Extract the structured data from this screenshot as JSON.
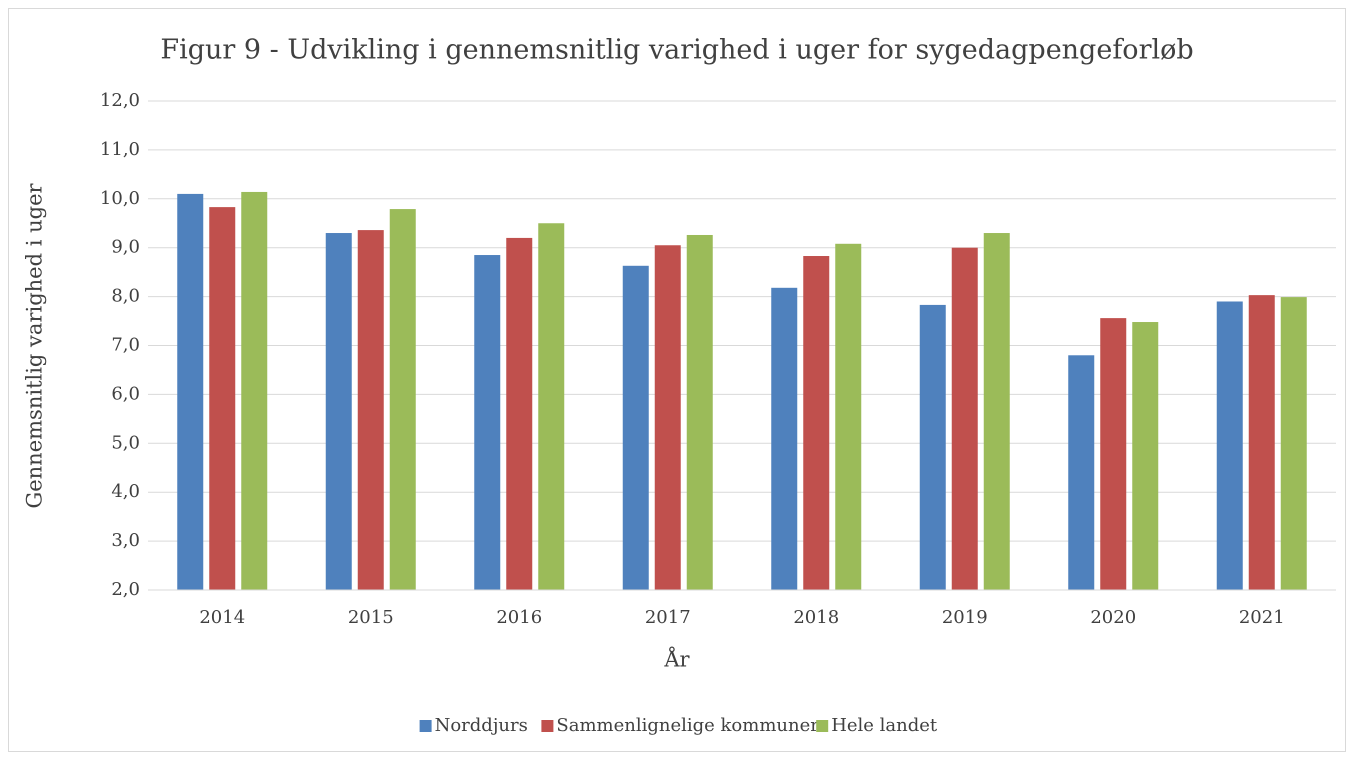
{
  "chart_data": {
    "type": "bar",
    "title": "Figur 9 - Udvikling i gennemsnitlig varighed i uger for sygedagpengeforløb",
    "x_label": "År",
    "y_label": "Gennemsnitlig varighed i uger",
    "categories": [
      "2014",
      "2015",
      "2016",
      "2017",
      "2018",
      "2019",
      "2020",
      "2021"
    ],
    "series": [
      {
        "name": "Norddjurs",
        "color": "#4f81bd",
        "values": [
          10.1,
          9.3,
          8.85,
          8.63,
          8.18,
          7.83,
          6.8,
          7.9
        ]
      },
      {
        "name": "Sammenlignelige kommuner",
        "color": "#c0504d",
        "values": [
          9.83,
          9.36,
          9.2,
          9.05,
          8.83,
          9.0,
          7.56,
          8.03
        ]
      },
      {
        "name": "Hele landet",
        "color": "#9bbb59",
        "values": [
          10.14,
          9.79,
          9.5,
          9.26,
          9.08,
          9.3,
          7.48,
          7.99
        ]
      }
    ],
    "ylim": [
      2,
      12
    ],
    "yticks": [
      {
        "value": 2,
        "label": "2,0"
      },
      {
        "value": 3,
        "label": "3,0"
      },
      {
        "value": 4,
        "label": "4,0"
      },
      {
        "value": 5,
        "label": "5,0"
      },
      {
        "value": 6,
        "label": "6,0"
      },
      {
        "value": 7,
        "label": "7,0"
      },
      {
        "value": 8,
        "label": "8,0"
      },
      {
        "value": 9,
        "label": "9,0"
      },
      {
        "value": 10,
        "label": "10,0"
      },
      {
        "value": 11,
        "label": "11,0"
      },
      {
        "value": 12,
        "label": "12,0"
      }
    ],
    "grid": true,
    "legend": "bottom"
  }
}
